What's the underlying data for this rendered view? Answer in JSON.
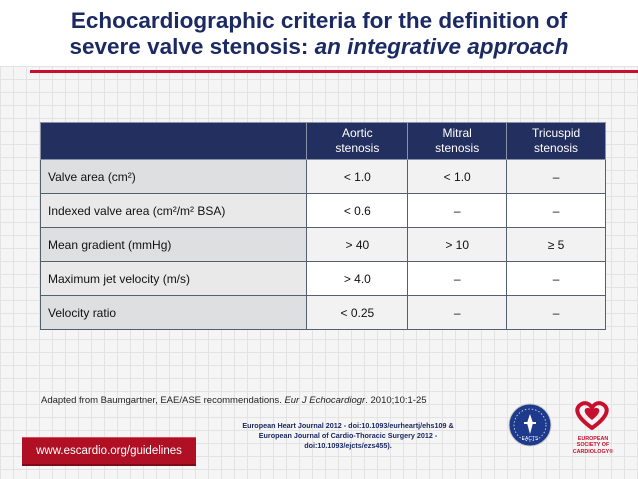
{
  "slide": {
    "title_line1": "Echocardiographic criteria for the definition of",
    "title_line2_plain": "severe valve stenosis: ",
    "title_line2_italic": "an integrative approach"
  },
  "table": {
    "headers": [
      {
        "line1": "",
        "line2": ""
      },
      {
        "line1": "Aortic",
        "line2": "stenosis"
      },
      {
        "line1": "Mitral",
        "line2": "stenosis"
      },
      {
        "line1": "Tricuspid",
        "line2": "stenosis"
      }
    ],
    "rows": [
      {
        "param": "Valve area (cm²)",
        "aortic": "< 1.0",
        "mitral": "< 1.0",
        "tricuspid": "–"
      },
      {
        "param": "Indexed valve area (cm²/m² BSA)",
        "aortic": "< 0.6",
        "mitral": "–",
        "tricuspid": "–"
      },
      {
        "param": "Mean gradient (mmHg)",
        "aortic": "> 40",
        "mitral": "> 10",
        "tricuspid": "≥ 5"
      },
      {
        "param": "Maximum jet velocity (m/s)",
        "aortic": "> 4.0",
        "mitral": "–",
        "tricuspid": "–"
      },
      {
        "param": "Velocity ratio",
        "aortic": "< 0.25",
        "mitral": "–",
        "tricuspid": "–"
      }
    ]
  },
  "source": {
    "prefix": "Adapted from Baumgartner, EAE/ASE recommendations. ",
    "journal": "Eur J Echocardiogr",
    "suffix": ". 2010;10:1-25"
  },
  "footer": {
    "url": "www.escardio.org/guidelines",
    "ref_line1": "European Heart Journal 2012 - doi:10.1093/eurheartj/ehs109 &",
    "ref_line2": "European Journal of Cardio-Thoracic Surgery 2012 -",
    "ref_line3": "doi:10.1093/ejcts/ezs455).",
    "eacts_label": "EACTS",
    "esc_line1": "EUROPEAN",
    "esc_line2": "SOCIETY OF",
    "esc_line3": "CARDIOLOGY®"
  },
  "colors": {
    "title": "#1b2a63",
    "accent_red": "#c8102e",
    "table_header": "#232f5e"
  }
}
